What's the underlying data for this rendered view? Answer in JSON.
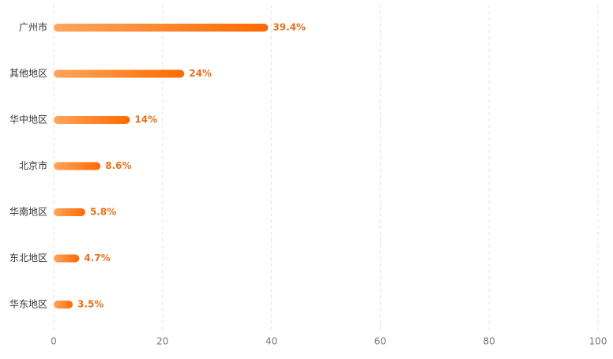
{
  "chart_data": {
    "type": "bar",
    "orientation": "horizontal",
    "title": "",
    "xlabel": "",
    "ylabel": "",
    "categories": [
      "广州市",
      "其他地区",
      "华中地区",
      "北京市",
      "华南地区",
      "东北地区",
      "华东地区"
    ],
    "values": [
      39.4,
      24,
      14,
      8.6,
      5.8,
      4.7,
      3.5
    ],
    "value_labels": [
      "39.4%",
      "24%",
      "14%",
      "8.6%",
      "5.8%",
      "4.7%",
      "3.5%"
    ],
    "xlim": [
      0,
      100
    ],
    "xticks": [
      0,
      20,
      40,
      60,
      80,
      100
    ],
    "grid": "vertical-dashed",
    "legend": "none"
  },
  "colors": {
    "bar_start": "#ffa55c",
    "bar_end": "#ff6a00",
    "value_label": "#e8701a",
    "grid": "#e3e3e3",
    "category_text": "#333333",
    "tick_text": "#777777"
  }
}
